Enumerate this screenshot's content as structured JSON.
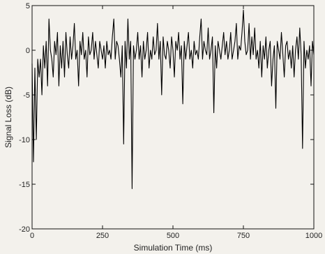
{
  "chart_data": {
    "type": "line",
    "title": "",
    "xlabel": "Simulation Time (ms)",
    "ylabel": "Signal Loss (dB)",
    "xlim": [
      0,
      1000
    ],
    "ylim": [
      -20,
      5
    ],
    "xticks": [
      0,
      250,
      500,
      750,
      1000
    ],
    "yticks": [
      -20,
      -15,
      -10,
      -5,
      0,
      5
    ],
    "xtick_labels": [
      "0",
      "250",
      "500",
      "750",
      "1000"
    ],
    "ytick_labels": [
      "-20",
      "-15",
      "-10",
      "-5",
      "0",
      "5"
    ],
    "grid": false,
    "line_color": "#000000",
    "series": [
      {
        "x": [
          0,
          5,
          10,
          15,
          20,
          25,
          30,
          35,
          40,
          45,
          50,
          55,
          60,
          65,
          70,
          75,
          80,
          85,
          90,
          95,
          100,
          105,
          110,
          115,
          120,
          125,
          130,
          135,
          140,
          145,
          150,
          155,
          160,
          165,
          170,
          175,
          180,
          185,
          190,
          195,
          200,
          205,
          210,
          215,
          220,
          225,
          230,
          235,
          240,
          245,
          250,
          255,
          260,
          265,
          270,
          275,
          280,
          285,
          290,
          295,
          300,
          305,
          310,
          315,
          320,
          325,
          330,
          335,
          340,
          345,
          350,
          355,
          360,
          365,
          370,
          375,
          380,
          385,
          390,
          395,
          400,
          405,
          410,
          415,
          420,
          425,
          430,
          435,
          440,
          445,
          450,
          455,
          460,
          465,
          470,
          475,
          480,
          485,
          490,
          495,
          500,
          505,
          510,
          515,
          520,
          525,
          530,
          535,
          540,
          545,
          550,
          555,
          560,
          565,
          570,
          575,
          580,
          585,
          590,
          595,
          600,
          605,
          610,
          615,
          620,
          625,
          630,
          635,
          640,
          645,
          650,
          655,
          660,
          665,
          670,
          675,
          680,
          685,
          690,
          695,
          700,
          705,
          710,
          715,
          720,
          725,
          730,
          735,
          740,
          745,
          750,
          755,
          760,
          765,
          770,
          775,
          780,
          785,
          790,
          795,
          800,
          805,
          810,
          815,
          820,
          825,
          830,
          835,
          840,
          845,
          850,
          855,
          860,
          865,
          870,
          875,
          880,
          885,
          890,
          895,
          900,
          905,
          910,
          915,
          920,
          925,
          930,
          935,
          940,
          945,
          950,
          955,
          960,
          965,
          970,
          975,
          980,
          985,
          990,
          995,
          1000
        ],
        "values": [
          -1.5,
          -12.5,
          -2,
          -10,
          -1,
          -3,
          -1,
          -5,
          0.5,
          -2,
          1,
          -4,
          3.5,
          0,
          -1,
          -3,
          1,
          -0.5,
          2,
          -4,
          0.5,
          -2,
          1,
          -3,
          2,
          -0.5,
          -2,
          1.5,
          -1,
          0.5,
          3,
          -1,
          0,
          -4,
          1,
          -0.5,
          2,
          -1,
          0,
          -3,
          1.5,
          -0.5,
          0,
          2,
          -1,
          1,
          -0.5,
          -2,
          1,
          0,
          -1,
          0.5,
          -2,
          1,
          -0.5,
          0,
          -1,
          1.5,
          3.5,
          -1,
          1,
          0.5,
          -1,
          -3,
          0.5,
          -10.5,
          1,
          -2,
          3.5,
          -1,
          1,
          -15.5,
          0.5,
          -1,
          0,
          2,
          -1,
          0.5,
          -3,
          1,
          -1,
          0,
          2,
          -2,
          0,
          -1,
          1.5,
          -0.5,
          0,
          3,
          -1,
          1,
          -5,
          1.5,
          -0.5,
          -1,
          1,
          0,
          -2,
          1.5,
          0,
          -3,
          1,
          0,
          2,
          -1,
          0.5,
          -6,
          1,
          -1,
          0.5,
          2,
          -1,
          0,
          -2,
          1,
          -0.5,
          0,
          -1,
          1.5,
          3.5,
          -1,
          1,
          0,
          -0.5,
          2.5,
          -1,
          0,
          1.5,
          -7,
          0.5,
          -2,
          1,
          0,
          -1,
          0.5,
          2,
          -0.5,
          1,
          -1,
          0,
          2,
          -1,
          0,
          1,
          3,
          -1,
          0.5,
          0,
          2,
          4.5,
          1,
          -0.5,
          0,
          3,
          -1,
          1.5,
          -0.5,
          2.5,
          -1,
          0,
          -2,
          1,
          -3,
          0.5,
          -1,
          1.5,
          -2,
          0,
          1,
          -4,
          -1,
          0.5,
          -6.5,
          1,
          0,
          -1,
          2,
          -0.5,
          -3,
          0.5,
          1,
          -1,
          0,
          -2,
          0.5,
          -3,
          0,
          1.5,
          -1,
          2.5,
          -0.5,
          -11,
          1,
          -2,
          0,
          -1,
          0.5,
          -4,
          1,
          -0.5
        ]
      }
    ]
  }
}
